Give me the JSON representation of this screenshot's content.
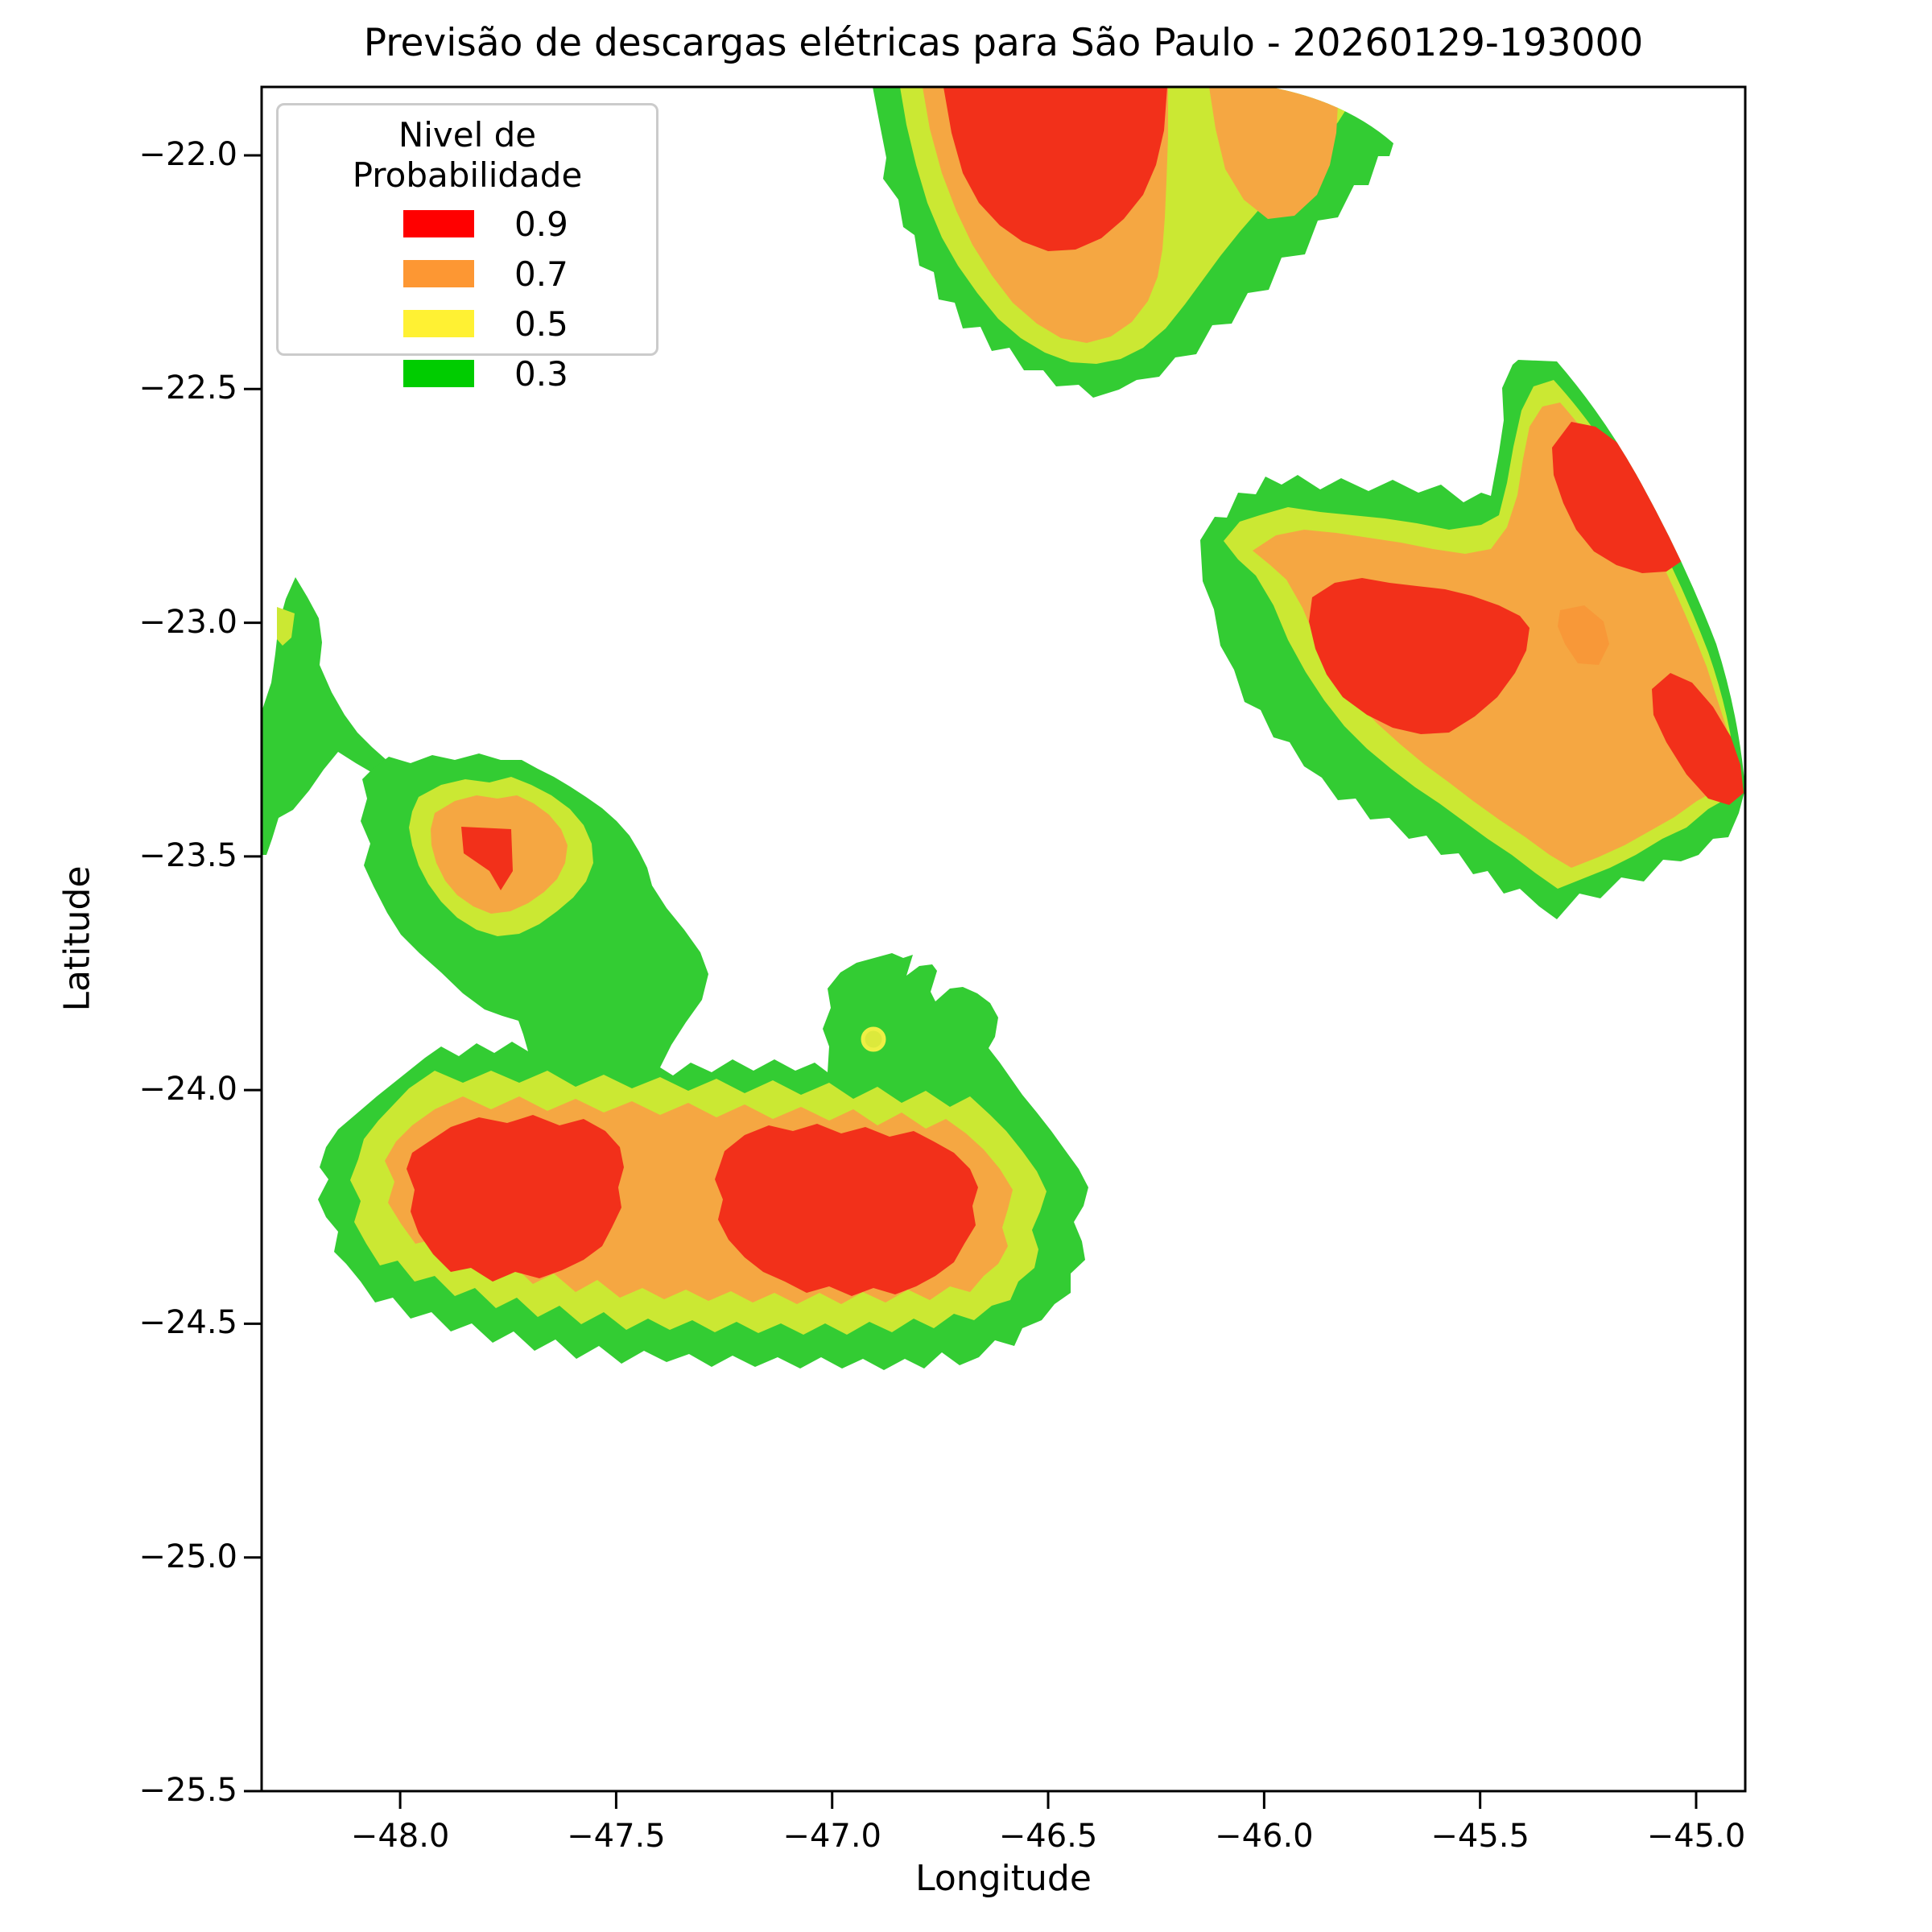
{
  "title": "Previsão de descargas elétricas para São Paulo - 20260129-193000",
  "legend": {
    "title": "Nivel de Probabilidade",
    "items": [
      {
        "label": "0.9",
        "color": "#ff0000"
      },
      {
        "label": "0.7",
        "color": "#fd9733"
      },
      {
        "label": "0.5",
        "color": "#fff133"
      },
      {
        "label": "0.3",
        "color": "#00cc00"
      }
    ]
  },
  "chart_data": {
    "type": "filled_contour_map",
    "title": "Previsão de descargas elétricas para São Paulo - 20260129-193000",
    "xlabel": "Longitude",
    "ylabel": "Latitude",
    "axes": {
      "x": {
        "label": "Longitude",
        "min": -48.3207,
        "max": -44.8863,
        "ticks": [
          -48.0,
          -47.5,
          -47.0,
          -46.5,
          -46.0,
          -45.5,
          -45.0
        ]
      },
      "y": {
        "label": "Latitude",
        "min": -25.5,
        "max": -21.8536,
        "ticks": [
          -22.0,
          -22.5,
          -23.0,
          -23.5,
          -24.0,
          -24.5,
          -25.0,
          -25.5
        ]
      }
    },
    "grid": false,
    "legend_position": "upper left",
    "levels": [
      {
        "value": 0.3,
        "color": "#33cc33"
      },
      {
        "value": 0.5,
        "color": "#cbe833"
      },
      {
        "value": 0.7,
        "color": "#f5a742"
      },
      {
        "value": 0.9,
        "color": "#f2301a"
      }
    ],
    "colors": {
      "green": "#33cc33",
      "yellow": "#cbe833",
      "orange": "#f5a742",
      "orange_deep": "#f89838",
      "red": "#f2301a",
      "marker_fill": "#dce93c",
      "marker_stroke": "#eef045",
      "spine": "#000000"
    },
    "regions": [
      {
        "name": "north-central-storm",
        "center_lon": -46.34,
        "center_lat": -22.1,
        "max_level": 0.9,
        "note": "clipped by top axis edge and by smooth range arc on northeast side"
      },
      {
        "name": "northeast-storm",
        "center_lon": -45.48,
        "center_lat": -23.08,
        "max_level": 0.9,
        "note": "three 0.9 cores, large 0.7 area, clipped by smooth range arc on east side"
      },
      {
        "name": "west-edge-sliver",
        "center_lon": -48.27,
        "center_lat": -23.22,
        "max_level": 0.5,
        "note": "narrow 0.3 sliver on left axis edge with tiny 0.5 patch"
      },
      {
        "name": "small-southwest-cell",
        "center_lon": -47.78,
        "center_lat": -23.5,
        "max_level": 0.9,
        "note": "small concentric cell with tiny 0.9 core"
      },
      {
        "name": "large-south-storm",
        "center_lon": -47.3,
        "center_lat": -24.22,
        "max_level": 0.9,
        "note": "dumbbell shaped, two large 0.9 cores, small 0.5 circular marker at -46.90,-23.89"
      }
    ]
  }
}
